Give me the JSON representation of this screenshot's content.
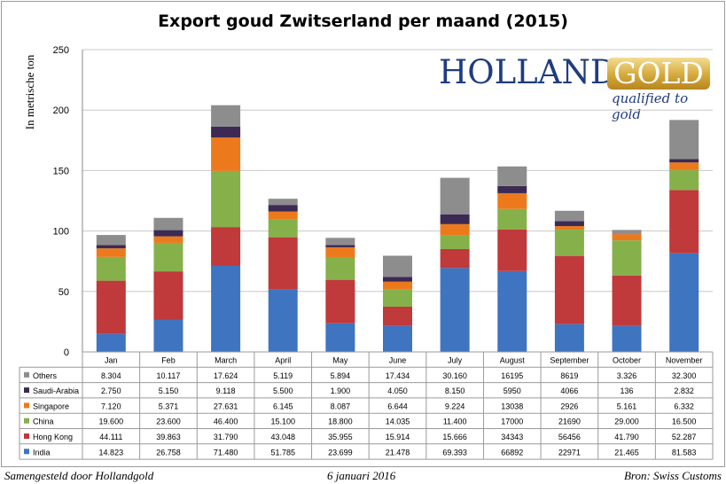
{
  "footer": {
    "left": "Samengesteld door Hollandgold",
    "middle": "6 januari 2016",
    "right": "Bron: Swiss Customs"
  },
  "logo": {
    "word1": "HOLLAND",
    "word2": "GOLD",
    "tagline": "qualified to gold"
  },
  "chart_data": {
    "type": "bar",
    "stacked": true,
    "title": "Export goud Zwitserland per maand (2015)",
    "ylabel": "In metrische ton",
    "xlabel": "",
    "ylim": [
      0,
      250
    ],
    "yticks": [
      0,
      50,
      100,
      150,
      200,
      250
    ],
    "grid": true,
    "categories": [
      "Jan",
      "Feb",
      "March",
      "April",
      "May",
      "June",
      "July",
      "August",
      "September",
      "October",
      "November"
    ],
    "series": [
      {
        "name": "India",
        "color": "#3f74c0",
        "labels": [
          "14.823",
          "26.758",
          "71.480",
          "51.785",
          "23.699",
          "21.478",
          "69.393",
          "66892",
          "22971",
          "21.465",
          "81.583"
        ],
        "values": [
          14.823,
          26.758,
          71.48,
          51.785,
          23.699,
          21.478,
          69.393,
          66.892,
          22.971,
          21.465,
          81.583
        ]
      },
      {
        "name": "Hong Kong",
        "color": "#c0393b",
        "labels": [
          "44.111",
          "39.863",
          "31.790",
          "43.048",
          "35.955",
          "15.914",
          "15.666",
          "34343",
          "56456",
          "41.790",
          "52.287"
        ],
        "values": [
          44.111,
          39.863,
          31.79,
          43.048,
          35.955,
          15.914,
          15.666,
          34.343,
          56.456,
          41.79,
          52.287
        ]
      },
      {
        "name": "China",
        "color": "#86b04a",
        "labels": [
          "19.600",
          "23.600",
          "46.400",
          "15.100",
          "18.800",
          "14.035",
          "11.400",
          "17000",
          "21690",
          "29.000",
          "16.500"
        ],
        "values": [
          19.6,
          23.6,
          46.4,
          15.1,
          18.8,
          14.035,
          11.4,
          17.0,
          21.69,
          29.0,
          16.5
        ]
      },
      {
        "name": "Singapore",
        "color": "#ec7a1c",
        "labels": [
          "7.120",
          "5.371",
          "27.631",
          "6.145",
          "8.087",
          "6.644",
          "9.224",
          "13038",
          "2926",
          "5.161",
          "6.332"
        ],
        "values": [
          7.12,
          5.371,
          27.631,
          6.145,
          8.087,
          6.644,
          9.224,
          13.038,
          2.926,
          5.161,
          6.332
        ]
      },
      {
        "name": "Saudi-Arabia",
        "color": "#3c2a55",
        "labels": [
          "2.750",
          "5.150",
          "9.118",
          "5.500",
          "1.900",
          "4.050",
          "8.150",
          "5950",
          "4066",
          "136",
          "2.832"
        ],
        "values": [
          2.75,
          5.15,
          9.118,
          5.5,
          1.9,
          4.05,
          8.15,
          5.95,
          4.066,
          0.136,
          2.832
        ]
      },
      {
        "name": "Others",
        "color": "#8d8d8d",
        "labels": [
          "8.304",
          "10.117",
          "17.624",
          "5.119",
          "5.894",
          "17.434",
          "30.160",
          "16195",
          "8619",
          "3.326",
          "32.300"
        ],
        "values": [
          8.304,
          10.117,
          17.624,
          5.119,
          5.894,
          17.434,
          30.16,
          16.195,
          8.619,
          3.326,
          32.3
        ]
      }
    ]
  }
}
